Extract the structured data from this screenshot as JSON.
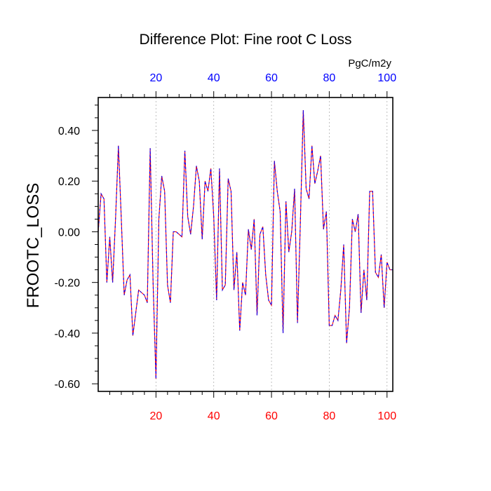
{
  "chart_data": {
    "type": "line",
    "title": "Difference Plot: Fine root C Loss",
    "ylabel": "FROOTC_LOSS",
    "units": "PgC/m2y",
    "xlim": [
      0,
      102
    ],
    "ylim": [
      -0.63,
      0.53
    ],
    "x_ticks": [
      20,
      40,
      60,
      80,
      100
    ],
    "x_tick_labels_bottom": [
      "20",
      "40",
      "60",
      "80",
      "100"
    ],
    "x_tick_labels_top": [
      "20",
      "40",
      "60",
      "80",
      "100"
    ],
    "y_ticks": [
      0.4,
      0.2,
      0.0,
      -0.2,
      -0.4,
      -0.6
    ],
    "y_tick_labels": [
      "0.40",
      "0.20",
      "0.00",
      "-0.20",
      "-0.40",
      "-0.60"
    ],
    "grid": "x-dotted",
    "colors": {
      "bottom_ticks": "#ff0000",
      "top_ticks": "#0000ff",
      "series_a": "#ff0000",
      "series_b": "#0000ff"
    },
    "series": [
      {
        "name": "difference",
        "x": [
          0,
          1,
          2,
          3,
          4,
          5,
          6,
          7,
          8,
          9,
          10,
          11,
          12,
          13,
          14,
          15,
          16,
          17,
          18,
          19,
          20,
          21,
          22,
          23,
          24,
          25,
          26,
          27,
          28,
          29,
          30,
          31,
          32,
          33,
          34,
          35,
          36,
          37,
          38,
          39,
          40,
          41,
          42,
          43,
          44,
          45,
          46,
          47,
          48,
          49,
          50,
          51,
          52,
          53,
          54,
          55,
          56,
          57,
          58,
          59,
          60,
          61,
          62,
          63,
          64,
          65,
          66,
          67,
          68,
          69,
          70,
          71,
          72,
          73,
          74,
          75,
          76,
          77,
          78,
          79,
          80,
          81,
          82,
          83,
          84,
          85,
          86,
          87,
          88,
          89,
          90,
          91,
          92,
          93,
          94,
          95,
          96,
          97,
          98,
          99,
          100,
          101,
          102
        ],
        "values": [
          0.0,
          0.15,
          0.13,
          -0.2,
          -0.02,
          -0.2,
          0.05,
          0.34,
          0.05,
          -0.25,
          -0.19,
          -0.17,
          -0.41,
          -0.32,
          -0.23,
          -0.24,
          -0.25,
          -0.28,
          0.33,
          -0.2,
          -0.58,
          0.05,
          0.22,
          0.16,
          -0.21,
          -0.28,
          0.0,
          0.0,
          -0.01,
          -0.02,
          0.32,
          0.06,
          -0.01,
          0.1,
          0.26,
          0.2,
          -0.03,
          0.2,
          0.16,
          0.25,
          0.06,
          -0.27,
          0.25,
          -0.23,
          -0.21,
          0.21,
          0.16,
          -0.23,
          -0.08,
          -0.39,
          -0.2,
          -0.25,
          0.01,
          -0.07,
          0.05,
          -0.33,
          -0.01,
          0.02,
          -0.17,
          -0.27,
          -0.29,
          0.28,
          0.16,
          0.08,
          -0.4,
          0.12,
          -0.08,
          0.0,
          0.17,
          -0.36,
          0.04,
          0.48,
          0.17,
          0.13,
          0.34,
          0.19,
          0.24,
          0.3,
          0.01,
          0.08,
          -0.37,
          -0.37,
          -0.33,
          -0.35,
          -0.23,
          -0.05,
          -0.44,
          -0.3,
          0.05,
          0.0,
          0.07,
          -0.32,
          -0.15,
          -0.27,
          0.16,
          0.16,
          -0.16,
          -0.18,
          -0.09,
          -0.3,
          -0.12,
          -0.15,
          -0.15
        ]
      }
    ]
  }
}
